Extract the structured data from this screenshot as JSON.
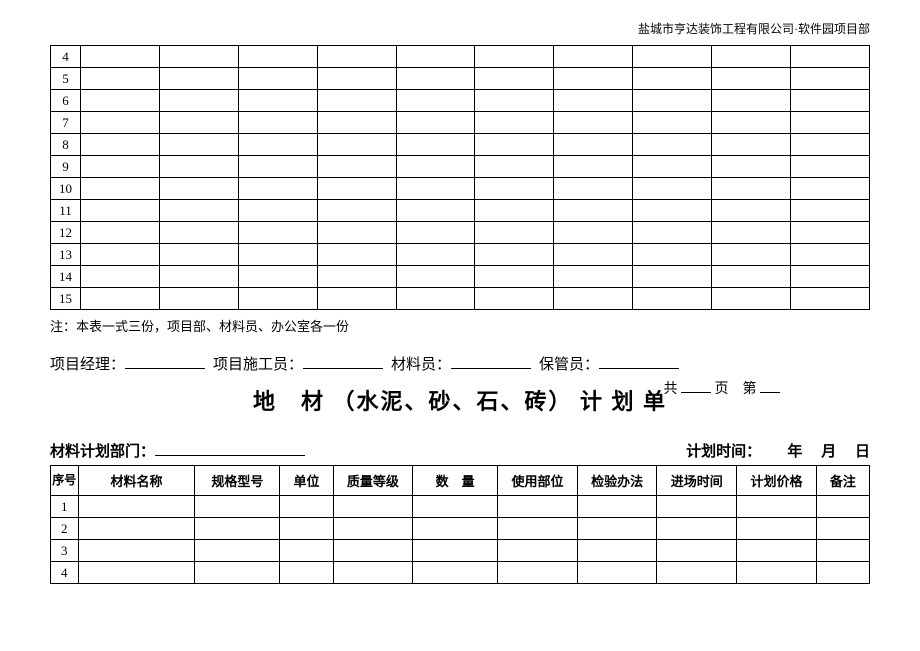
{
  "header": "盐城市亨达装饰工程有限公司·软件园项目部",
  "table1": {
    "rows": [
      4,
      5,
      6,
      7,
      8,
      9,
      10,
      11,
      12,
      13,
      14,
      15
    ],
    "col_count": 11
  },
  "note": "注：本表一式三份，项目部、材料员、办公室各一份",
  "signatures": {
    "pm": "项目经理：",
    "builder": "项目施工员：",
    "material": "材料员：",
    "keeper": "保管员："
  },
  "pagecount": {
    "prefix": "共",
    "mid": "页　第",
    "suffix": ""
  },
  "title": "地　材 （水泥、砂、石、砖）  计 划 单",
  "meta": {
    "dept_label": "材料计划部门：",
    "time_label": "计划时间：",
    "date_y": "年",
    "date_m": "月",
    "date_d": "日"
  },
  "table2": {
    "headers": {
      "seq": "序号",
      "name": "材料名称",
      "spec": "规格型号",
      "unit": "单位",
      "grade": "质量等级",
      "qty": "数　量",
      "part": "使用部位",
      "inspect": "检验办法",
      "enter": "进场时间",
      "price": "计划价格",
      "remark": "备注"
    },
    "rows": [
      1,
      2,
      3,
      4
    ]
  }
}
